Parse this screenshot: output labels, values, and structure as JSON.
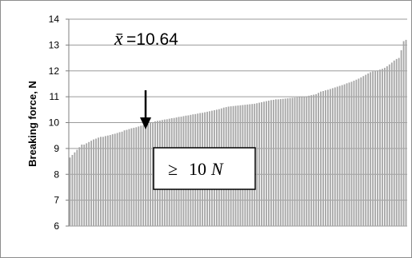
{
  "chart_data": {
    "type": "bar",
    "ylabel": "Breaking force, N",
    "ylim": [
      6,
      14
    ],
    "yticks": [
      "6",
      "7",
      "8",
      "9",
      "10",
      "11",
      "12",
      "13",
      "14"
    ],
    "grid": true,
    "bar_color": "#a6a6a6",
    "annotations": {
      "mean_symbol": "x̄",
      "mean_text": "=10.64",
      "threshold_symbol": "≥",
      "threshold_value": "10",
      "threshold_unit": "N"
    },
    "values": [
      8.65,
      8.75,
      8.85,
      8.95,
      9.05,
      9.15,
      9.15,
      9.2,
      9.25,
      9.3,
      9.35,
      9.38,
      9.42,
      9.45,
      9.45,
      9.48,
      9.5,
      9.52,
      9.55,
      9.57,
      9.6,
      9.63,
      9.65,
      9.7,
      9.72,
      9.75,
      9.78,
      9.8,
      9.82,
      9.85,
      9.88,
      9.9,
      9.93,
      9.96,
      10.0,
      10.02,
      10.05,
      10.07,
      10.08,
      10.1,
      10.12,
      10.13,
      10.15,
      10.17,
      10.18,
      10.2,
      10.22,
      10.23,
      10.25,
      10.27,
      10.28,
      10.3,
      10.32,
      10.33,
      10.35,
      10.37,
      10.38,
      10.4,
      10.42,
      10.44,
      10.46,
      10.48,
      10.5,
      10.52,
      10.55,
      10.58,
      10.6,
      10.62,
      10.63,
      10.64,
      10.65,
      10.66,
      10.67,
      10.68,
      10.69,
      10.7,
      10.71,
      10.72,
      10.73,
      10.75,
      10.77,
      10.79,
      10.81,
      10.83,
      10.85,
      10.87,
      10.88,
      10.9,
      10.9,
      10.91,
      10.92,
      10.93,
      10.94,
      10.95,
      10.96,
      10.97,
      10.98,
      10.99,
      11.0,
      11.0,
      11.02,
      11.04,
      11.06,
      11.08,
      11.1,
      11.15,
      11.2,
      11.22,
      11.25,
      11.27,
      11.3,
      11.33,
      11.36,
      11.39,
      11.42,
      11.45,
      11.48,
      11.52,
      11.55,
      11.58,
      11.62,
      11.66,
      11.7,
      11.75,
      11.8,
      11.85,
      11.9,
      11.95,
      11.98,
      12.0,
      12.02,
      12.05,
      12.08,
      12.12,
      12.18,
      12.25,
      12.32,
      12.4,
      12.46,
      12.5,
      12.8,
      13.15,
      13.2
    ]
  }
}
